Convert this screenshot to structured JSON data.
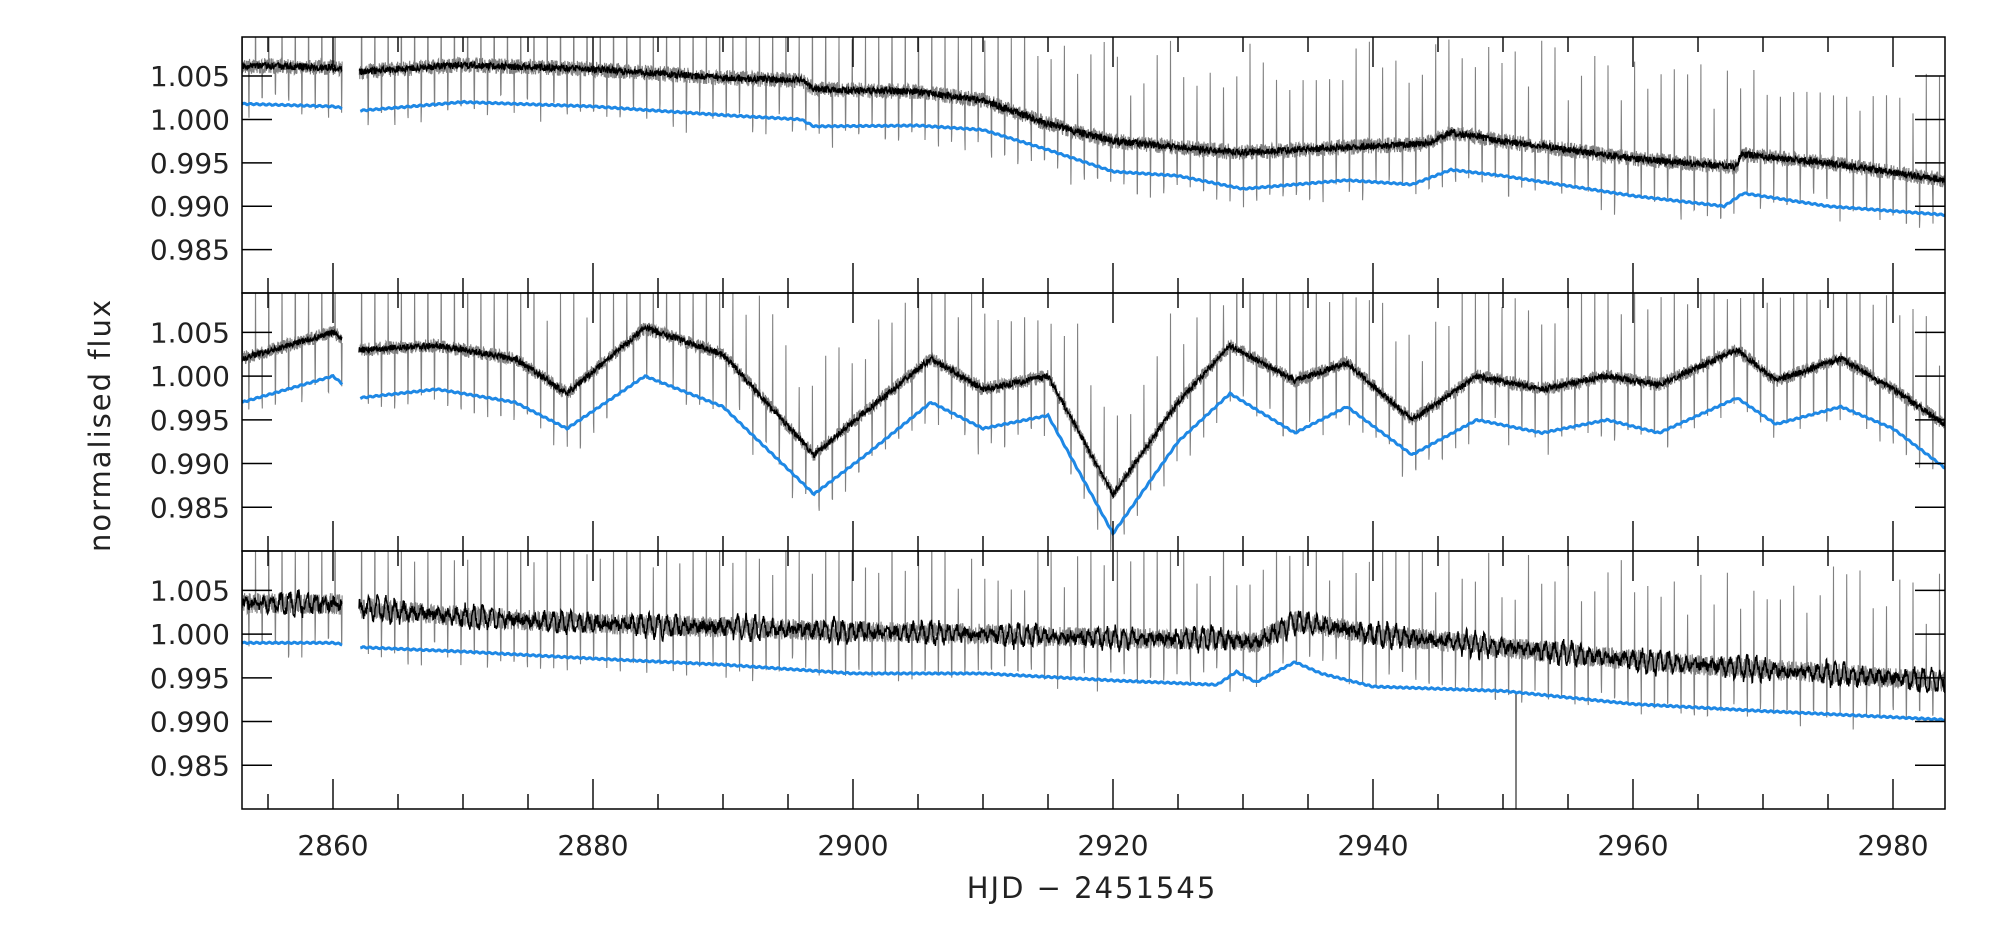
{
  "chart_data": {
    "type": "line",
    "xlabel": "HJD − 2451545",
    "ylabel": "normalised flux",
    "xlim": [
      2853,
      2984
    ],
    "xticks": [
      2860,
      2880,
      2900,
      2920,
      2940,
      2960,
      2980
    ],
    "xtick_labels": [
      "2860",
      "2880",
      "2900",
      "2920",
      "2940",
      "2960",
      "2980"
    ],
    "ylim": [
      0.98,
      1.0095
    ],
    "yticks": [
      0.985,
      0.99,
      0.995,
      1.0,
      1.005
    ],
    "ytick_labels": [
      "0.985",
      "0.990",
      "0.995",
      "1.000",
      "1.005"
    ],
    "grid": false,
    "gap": [
      2860.7,
      2862.0
    ],
    "colors": {
      "raw": "#808080",
      "binned": "#000000",
      "model": "#1e88e5"
    },
    "panels": [
      {
        "series": [
          {
            "role": "raw",
            "transit_depth": 0.012,
            "transit_period": 1.02,
            "noise": 0.0009
          },
          {
            "role": "binned",
            "noise": 0.0004,
            "x": [
              2853,
              2860,
              2862,
              2870,
              2880,
              2890,
              2896,
              2897,
              2905,
              2910,
              2915,
              2920,
              2925,
              2930,
              2938,
              2944,
              2946,
              2950,
              2960,
              2968,
              2968.3,
              2975,
              2984
            ],
            "y": [
              1.0062,
              1.006,
              1.0055,
              1.0063,
              1.0058,
              1.0048,
              1.0045,
              1.0035,
              1.0032,
              1.0022,
              0.9995,
              0.9975,
              0.9968,
              0.9962,
              0.9968,
              0.9972,
              0.9985,
              0.9975,
              0.9955,
              0.9945,
              0.996,
              0.995,
              0.993
            ]
          },
          {
            "role": "model",
            "x": [
              2853,
              2860,
              2862,
              2870,
              2880,
              2890,
              2896,
              2897,
              2905,
              2910,
              2915,
              2920,
              2925,
              2930,
              2938,
              2943,
              2946,
              2950,
              2960,
              2967,
              2968.5,
              2975,
              2984
            ],
            "y": [
              1.0018,
              1.0015,
              1.001,
              1.002,
              1.0015,
              1.0005,
              1.0,
              0.9992,
              0.9993,
              0.9988,
              0.9965,
              0.994,
              0.9935,
              0.992,
              0.993,
              0.9925,
              0.9942,
              0.9935,
              0.9912,
              0.99,
              0.9915,
              0.99,
              0.989
            ]
          }
        ]
      },
      {
        "series": [
          {
            "role": "raw",
            "transit_depth": 0.0145,
            "transit_period": 1.02,
            "noise": 0.0008
          },
          {
            "role": "binned",
            "noise": 0.00035,
            "x": [
              2853,
              2860,
              2862,
              2868,
              2874,
              2878,
              2884,
              2890,
              2897,
              2901,
              2906,
              2910,
              2915,
              2920,
              2925,
              2929,
              2934,
              2938,
              2943,
              2948,
              2953,
              2958,
              2962,
              2968,
              2971,
              2976,
              2980,
              2984
            ],
            "y": [
              1.002,
              1.005,
              1.003,
              1.0035,
              1.002,
              0.998,
              1.0055,
              1.0025,
              0.991,
              0.996,
              1.002,
              0.9985,
              1.0,
              0.9865,
              0.997,
              1.0035,
              0.9995,
              1.0015,
              0.995,
              1.0,
              0.9985,
              1.0,
              0.999,
              1.003,
              0.9995,
              1.002,
              0.9985,
              0.9945
            ]
          },
          {
            "role": "model",
            "x": [
              2853,
              2860,
              2862,
              2868,
              2874,
              2878,
              2884,
              2890,
              2897,
              2901,
              2906,
              2910,
              2915,
              2920,
              2925,
              2929,
              2934,
              2938,
              2943,
              2948,
              2953,
              2958,
              2962,
              2968,
              2971,
              2976,
              2980,
              2984
            ],
            "y": [
              0.997,
              1.0,
              0.9975,
              0.9985,
              0.997,
              0.994,
              1.0,
              0.9965,
              0.9865,
              0.991,
              0.997,
              0.994,
              0.9955,
              0.982,
              0.9925,
              0.998,
              0.9935,
              0.9965,
              0.991,
              0.995,
              0.9935,
              0.995,
              0.9935,
              0.9975,
              0.9945,
              0.9965,
              0.994,
              0.9895
            ]
          }
        ]
      },
      {
        "series": [
          {
            "role": "raw",
            "transit_depth": 0.011,
            "transit_period": 1.02,
            "noise": 0.0012,
            "spike": {
              "x": 2951,
              "y": 0.9795
            }
          },
          {
            "role": "binned",
            "noise": 0.0006,
            "x": [
              2853,
              2860,
              2862,
              2870,
              2880,
              2890,
              2900,
              2910,
              2920,
              2928,
              2931,
              2934,
              2936,
              2940,
              2950,
              2960,
              2970,
              2980,
              2984
            ],
            "y": [
              1.0035,
              1.0035,
              1.003,
              1.002,
              1.0012,
              1.0008,
              1.0003,
              1.0,
              0.9995,
              0.9995,
              0.999,
              1.0015,
              1.001,
              1.0,
              0.9985,
              0.997,
              0.996,
              0.995,
              0.9945
            ]
          },
          {
            "role": "model",
            "x": [
              2853,
              2860,
              2862,
              2870,
              2880,
              2890,
              2900,
              2910,
              2920,
              2928,
              2929.5,
              2931,
              2934,
              2936,
              2940,
              2950,
              2952,
              2960,
              2970,
              2980,
              2984
            ],
            "y": [
              0.999,
              0.999,
              0.9985,
              0.998,
              0.9972,
              0.9965,
              0.9955,
              0.9955,
              0.9947,
              0.9942,
              0.9957,
              0.9945,
              0.9968,
              0.9955,
              0.994,
              0.9935,
              0.9932,
              0.992,
              0.9912,
              0.9905,
              0.9902
            ]
          }
        ]
      }
    ]
  }
}
